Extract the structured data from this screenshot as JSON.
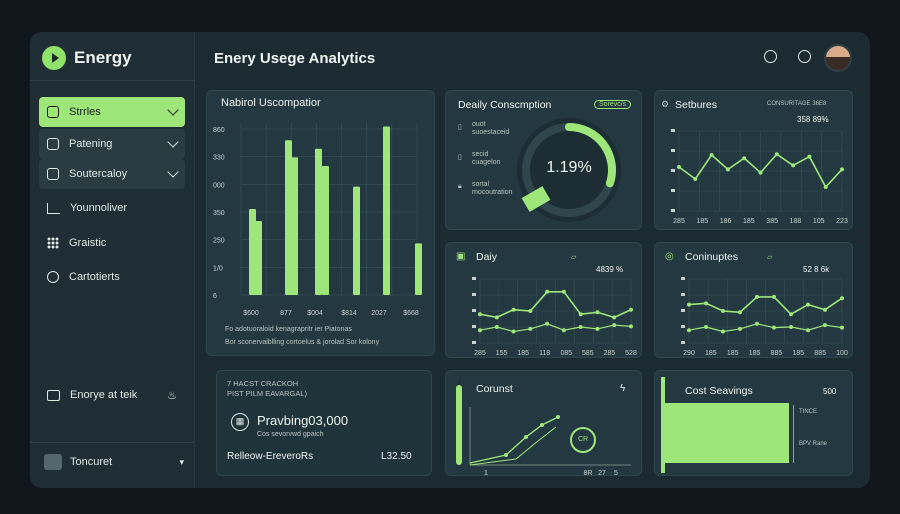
{
  "brand": {
    "name": "Energy"
  },
  "header": {
    "title": "Enery Usege Analytics"
  },
  "sidebar": {
    "items": [
      {
        "label": "Strrles",
        "state": "active"
      },
      {
        "label": "Patening",
        "state": "sub"
      },
      {
        "label": "Soutercaloy",
        "state": "sub"
      },
      {
        "label": "Younnoliver",
        "state": "plain"
      },
      {
        "label": "Graistic",
        "state": "plain"
      },
      {
        "label": "Cartotierts",
        "state": "plain"
      }
    ],
    "bottom_link": "Enorye at teik",
    "footer": "Toncuret"
  },
  "colors": {
    "accent": "#9fe67a",
    "panel": "#233840",
    "background": "#1c2a31"
  },
  "usage_panel": {
    "title": "Nabirol Uscompatior",
    "note1": "Fo adotuoraloid kenagrapritr ier Piatonas",
    "note2": "Bor sconervaiblling cortoelus & jorolad Sor kolony",
    "chart_data": {
      "type": "bar",
      "y_ticks": [
        "860",
        "330",
        "000",
        "350",
        "250",
        "1/0",
        "6"
      ],
      "x_ticks": [
        "$600",
        "877",
        "$004",
        "$814",
        "2027",
        "$668"
      ],
      "bars": [
        {
          "height_pct": 50
        },
        {
          "height_pct": 43
        },
        {
          "height_pct": 90
        },
        {
          "height_pct": 80
        },
        {
          "height_pct": 85
        },
        {
          "height_pct": 75
        },
        {
          "height_pct": 63
        },
        {
          "height_pct": 98
        },
        {
          "height_pct": 30
        }
      ]
    }
  },
  "daily_consumption": {
    "title": "Deaily Conscmption",
    "badge": "Sorevc/s",
    "center_value": "1.19%",
    "gauge_fraction": 0.3,
    "legend": [
      {
        "line1": "ouot",
        "line2": "suoestaceid"
      },
      {
        "line1": "secid",
        "line2": "cuagelon"
      },
      {
        "line1": "sortal",
        "line2": "mocoutration"
      }
    ]
  },
  "settings_panel": {
    "title": "Setbures",
    "caption": "CONSURITAGE 36E8",
    "value": "358 89%",
    "x_ticks": [
      "285",
      "185",
      "186",
      "185",
      "385",
      "188",
      "105",
      "223"
    ],
    "chart_data": {
      "type": "line",
      "values": [
        55,
        40,
        70,
        52,
        66,
        48,
        71,
        57,
        68,
        30,
        52
      ]
    }
  },
  "daily_panel": {
    "title": "Daiy",
    "value": "4839 %",
    "x_ticks": [
      "285",
      "155",
      "185",
      "118",
      "085",
      "585",
      "285",
      "528"
    ],
    "chart_data": {
      "type": "line",
      "series": [
        {
          "name": "primary",
          "values": [
            45,
            40,
            52,
            50,
            80,
            80,
            45,
            48,
            40,
            52
          ]
        },
        {
          "name": "secondary",
          "values": [
            20,
            25,
            18,
            22,
            30,
            20,
            25,
            22,
            28,
            26
          ]
        }
      ]
    }
  },
  "conunputes_panel": {
    "title": "Coninuptes",
    "value": "52 8 6k",
    "x_ticks": [
      "290",
      "185",
      "185",
      "185",
      "885",
      "185",
      "885",
      "100"
    ],
    "chart_data": {
      "type": "line",
      "series": [
        {
          "name": "primary",
          "values": [
            60,
            62,
            50,
            48,
            72,
            72,
            45,
            60,
            52,
            70
          ]
        },
        {
          "name": "secondary",
          "values": [
            20,
            25,
            18,
            22,
            30,
            24,
            25,
            20,
            28,
            24
          ]
        }
      ]
    }
  },
  "savings_summary": {
    "line1": "7 HACST CRACKOH",
    "line2": "PIST PILM EAVARGAL)",
    "amount": "Pravbing03,000",
    "sub": "Cos sevorvwd gpaich",
    "link": "Relleow-EreveroRs",
    "value": "L32.50"
  },
  "conunst_panel": {
    "title": "Corunst",
    "badge": "CR",
    "x_ticks": [
      "1",
      "8R",
      "27",
      "5"
    ]
  },
  "cost_savings": {
    "title": "Cost Seavings",
    "value": "500",
    "note1": "TINCE",
    "note2": "BPV Rane"
  }
}
